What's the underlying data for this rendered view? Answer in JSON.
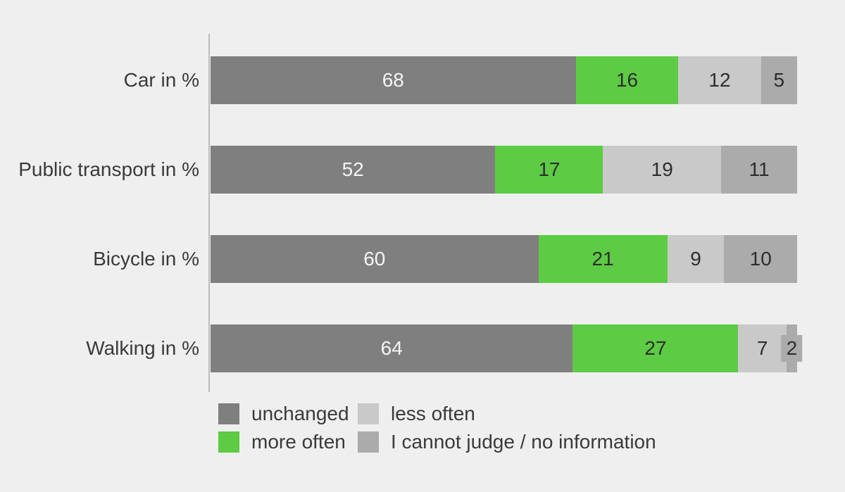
{
  "page": {
    "background_color": "#efefef",
    "axis_line_color": "#bdbdbd",
    "text_color": "#3a3a3a"
  },
  "chart_data": {
    "type": "bar",
    "orientation": "horizontal",
    "stacked": true,
    "rows_normalized_to_full_width": true,
    "title": "",
    "xlabel": "",
    "ylabel": "",
    "categories": [
      "Car in %",
      "Public transport in %",
      "Bicycle in %",
      "Walking in %"
    ],
    "series": [
      {
        "name": "unchanged",
        "color": "#7f7f7f",
        "label_color": "#f5f5f5",
        "values": [
          68,
          52,
          60,
          64
        ]
      },
      {
        "name": "more often",
        "color": "#5dcb44",
        "label_color": "#2d2d2d",
        "values": [
          16,
          17,
          21,
          27
        ]
      },
      {
        "name": "less often",
        "color": "#c9c9c9",
        "label_color": "#2d2d2d",
        "values": [
          12,
          19,
          9,
          7
        ]
      },
      {
        "name": "I cannot judge / no information",
        "color": "#ababab",
        "label_color": "#2d2d2d",
        "values": [
          5,
          11,
          10,
          2
        ]
      }
    ],
    "legend": {
      "position": "bottom-left",
      "layout": "2 rows, column-major",
      "entries": [
        "unchanged",
        "more often",
        "less often",
        "I cannot judge / no information"
      ]
    }
  }
}
